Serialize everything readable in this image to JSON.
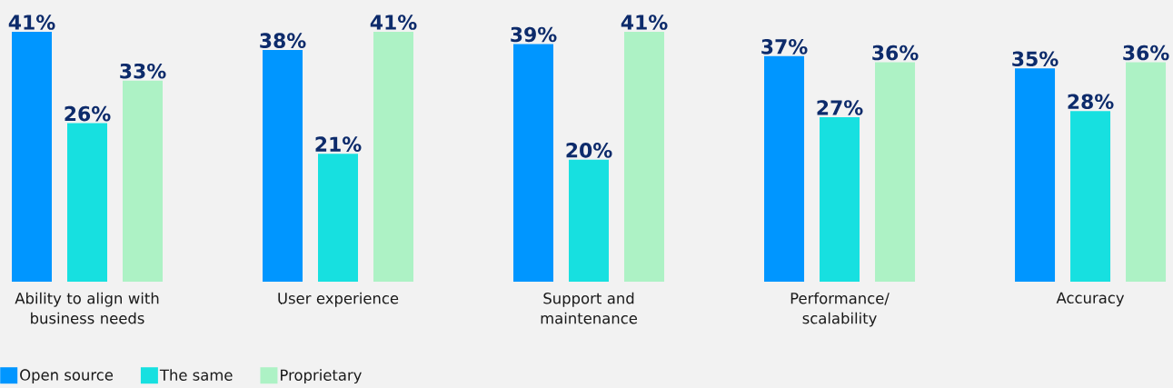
{
  "chart_data": {
    "type": "bar",
    "categories": [
      "Ability to align with business needs",
      "User experience",
      "Support and maintenance",
      "Performance/ scalability",
      "Accuracy"
    ],
    "series": [
      {
        "name": "Open source",
        "color": "#0096ff",
        "values": [
          41,
          38,
          39,
          37,
          35
        ],
        "value_labels": [
          "41%",
          "38%",
          "39%",
          "37%",
          "35%"
        ]
      },
      {
        "name": "The same",
        "color": "#17e0e0",
        "values": [
          26,
          21,
          20,
          27,
          28
        ],
        "value_labels": [
          "26%",
          "21%",
          "20%",
          "27%",
          "28%"
        ]
      },
      {
        "name": "Proprietary",
        "color": "#adf2c5",
        "values": [
          33,
          41,
          41,
          36,
          36
        ],
        "value_labels": [
          "33%",
          "41%",
          "41%",
          "36%",
          "36%"
        ]
      }
    ],
    "legend": "bottom left",
    "tick_labels": "x"
  }
}
